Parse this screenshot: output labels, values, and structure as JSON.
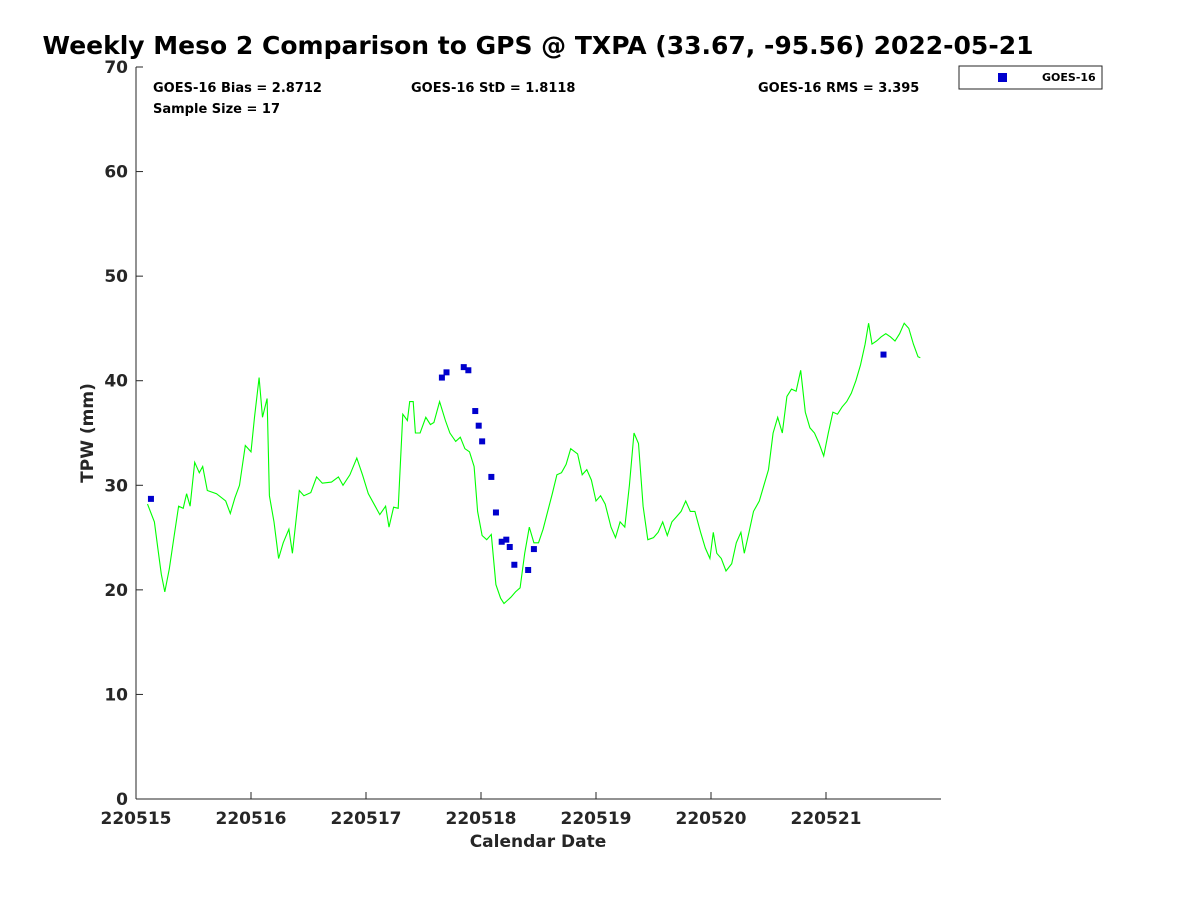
{
  "chart_data": {
    "type": "scatter",
    "title": "Weekly Meso 2 Comparison to GPS @ TXPA (33.67, -95.56) 2022-05-21",
    "xlabel": "Calendar Date",
    "ylabel": "TPW (mm)",
    "xlim": [
      0,
      7
    ],
    "ylim": [
      0,
      70
    ],
    "x_ticks": [
      0,
      1,
      2,
      3,
      4,
      5,
      6
    ],
    "x_tick_labels": [
      "220515",
      "220516",
      "220517",
      "220518",
      "220519",
      "220520",
      "220521"
    ],
    "y_ticks": [
      0,
      10,
      20,
      30,
      40,
      50,
      60,
      70
    ],
    "y_tick_labels": [
      "0",
      "10",
      "20",
      "30",
      "40",
      "50",
      "60",
      "70"
    ],
    "grid": false,
    "legend_position": "outside top-right",
    "stats": {
      "bias": "GOES-16 Bias = 2.8712",
      "std": "GOES-16 StD = 1.8118",
      "rms": "GOES-16 RMS = 3.395",
      "sample_size": "Sample Size = 17"
    },
    "series": [
      {
        "name": "GOES-16",
        "kind": "scatter",
        "marker": "square",
        "color": "#0000cd",
        "points": [
          [
            0.13,
            28.7
          ],
          [
            2.66,
            40.3
          ],
          [
            2.7,
            40.8
          ],
          [
            2.85,
            41.3
          ],
          [
            2.89,
            41.0
          ],
          [
            2.95,
            37.1
          ],
          [
            2.98,
            35.7
          ],
          [
            3.01,
            34.2
          ],
          [
            3.09,
            30.8
          ],
          [
            3.13,
            27.4
          ],
          [
            3.18,
            24.6
          ],
          [
            3.22,
            24.8
          ],
          [
            3.25,
            24.1
          ],
          [
            3.29,
            22.4
          ],
          [
            3.41,
            21.9
          ],
          [
            3.46,
            23.9
          ],
          [
            6.5,
            42.5
          ]
        ]
      },
      {
        "kind": "line",
        "color": "#00ff00",
        "points": [
          [
            0.1,
            28.2
          ],
          [
            0.16,
            26.5
          ],
          [
            0.19,
            24.0
          ],
          [
            0.22,
            21.5
          ],
          [
            0.25,
            19.8
          ],
          [
            0.29,
            22.0
          ],
          [
            0.33,
            25.0
          ],
          [
            0.37,
            28.0
          ],
          [
            0.41,
            27.8
          ],
          [
            0.44,
            29.2
          ],
          [
            0.47,
            28.0
          ],
          [
            0.51,
            32.2
          ],
          [
            0.55,
            31.2
          ],
          [
            0.58,
            31.8
          ],
          [
            0.62,
            29.5
          ],
          [
            0.7,
            29.2
          ],
          [
            0.78,
            28.5
          ],
          [
            0.82,
            27.3
          ],
          [
            0.86,
            28.8
          ],
          [
            0.9,
            30.0
          ],
          [
            0.95,
            33.8
          ],
          [
            1.0,
            33.2
          ],
          [
            1.03,
            36.5
          ],
          [
            1.07,
            40.3
          ],
          [
            1.1,
            36.5
          ],
          [
            1.14,
            38.3
          ],
          [
            1.16,
            29.0
          ],
          [
            1.2,
            26.5
          ],
          [
            1.24,
            23.0
          ],
          [
            1.28,
            24.5
          ],
          [
            1.33,
            25.8
          ],
          [
            1.36,
            23.5
          ],
          [
            1.42,
            29.5
          ],
          [
            1.46,
            29.0
          ],
          [
            1.52,
            29.3
          ],
          [
            1.57,
            30.8
          ],
          [
            1.62,
            30.2
          ],
          [
            1.7,
            30.3
          ],
          [
            1.76,
            30.8
          ],
          [
            1.8,
            30.0
          ],
          [
            1.86,
            31.0
          ],
          [
            1.92,
            32.6
          ],
          [
            1.97,
            31.0
          ],
          [
            2.02,
            29.2
          ],
          [
            2.08,
            28.0
          ],
          [
            2.12,
            27.2
          ],
          [
            2.17,
            28.0
          ],
          [
            2.2,
            26.0
          ],
          [
            2.24,
            27.9
          ],
          [
            2.28,
            27.8
          ],
          [
            2.32,
            36.8
          ],
          [
            2.36,
            36.2
          ],
          [
            2.38,
            38.0
          ],
          [
            2.41,
            38.0
          ],
          [
            2.43,
            35.0
          ],
          [
            2.47,
            35.0
          ],
          [
            2.52,
            36.5
          ],
          [
            2.56,
            35.8
          ],
          [
            2.59,
            36.0
          ],
          [
            2.64,
            38.0
          ],
          [
            2.69,
            36.2
          ],
          [
            2.73,
            35.0
          ],
          [
            2.78,
            34.2
          ],
          [
            2.82,
            34.6
          ],
          [
            2.86,
            33.5
          ],
          [
            2.9,
            33.2
          ],
          [
            2.94,
            31.8
          ],
          [
            2.97,
            27.5
          ],
          [
            3.01,
            25.2
          ],
          [
            3.05,
            24.8
          ],
          [
            3.09,
            25.3
          ],
          [
            3.13,
            20.5
          ],
          [
            3.17,
            19.2
          ],
          [
            3.2,
            18.7
          ],
          [
            3.26,
            19.3
          ],
          [
            3.3,
            19.8
          ],
          [
            3.34,
            20.2
          ],
          [
            3.38,
            23.5
          ],
          [
            3.42,
            26.0
          ],
          [
            3.46,
            24.5
          ],
          [
            3.5,
            24.5
          ],
          [
            3.54,
            25.8
          ],
          [
            3.58,
            27.5
          ],
          [
            3.62,
            29.2
          ],
          [
            3.66,
            31.0
          ],
          [
            3.7,
            31.2
          ],
          [
            3.74,
            32.0
          ],
          [
            3.78,
            33.5
          ],
          [
            3.84,
            33.0
          ],
          [
            3.88,
            31.0
          ],
          [
            3.92,
            31.5
          ],
          [
            3.96,
            30.5
          ],
          [
            4.0,
            28.5
          ],
          [
            4.04,
            29.0
          ],
          [
            4.08,
            28.2
          ],
          [
            4.13,
            26.0
          ],
          [
            4.17,
            25.0
          ],
          [
            4.21,
            26.5
          ],
          [
            4.25,
            26.0
          ],
          [
            4.29,
            30.0
          ],
          [
            4.33,
            35.0
          ],
          [
            4.37,
            34.0
          ],
          [
            4.41,
            28.0
          ],
          [
            4.45,
            24.8
          ],
          [
            4.5,
            25.0
          ],
          [
            4.54,
            25.5
          ],
          [
            4.58,
            26.5
          ],
          [
            4.62,
            25.2
          ],
          [
            4.66,
            26.5
          ],
          [
            4.7,
            27.0
          ],
          [
            4.74,
            27.5
          ],
          [
            4.78,
            28.5
          ],
          [
            4.82,
            27.5
          ],
          [
            4.86,
            27.5
          ],
          [
            4.91,
            25.5
          ],
          [
            4.95,
            24.0
          ],
          [
            4.99,
            23.0
          ],
          [
            5.02,
            25.5
          ],
          [
            5.05,
            23.5
          ],
          [
            5.09,
            23.0
          ],
          [
            5.13,
            21.8
          ],
          [
            5.18,
            22.5
          ],
          [
            5.22,
            24.5
          ],
          [
            5.26,
            25.5
          ],
          [
            5.29,
            23.5
          ],
          [
            5.33,
            25.5
          ],
          [
            5.37,
            27.5
          ],
          [
            5.42,
            28.5
          ],
          [
            5.46,
            30.0
          ],
          [
            5.5,
            31.5
          ],
          [
            5.54,
            35.0
          ],
          [
            5.58,
            36.5
          ],
          [
            5.62,
            35.0
          ],
          [
            5.66,
            38.5
          ],
          [
            5.7,
            39.2
          ],
          [
            5.74,
            39.0
          ],
          [
            5.78,
            41.0
          ],
          [
            5.82,
            37.0
          ],
          [
            5.86,
            35.5
          ],
          [
            5.9,
            35.0
          ],
          [
            5.94,
            34.0
          ],
          [
            5.98,
            32.8
          ],
          [
            6.02,
            35.0
          ],
          [
            6.06,
            37.0
          ],
          [
            6.1,
            36.8
          ],
          [
            6.14,
            37.5
          ],
          [
            6.18,
            38.0
          ],
          [
            6.22,
            38.8
          ],
          [
            6.26,
            40.0
          ],
          [
            6.3,
            41.5
          ],
          [
            6.34,
            43.5
          ],
          [
            6.37,
            45.5
          ],
          [
            6.4,
            43.5
          ],
          [
            6.44,
            43.8
          ],
          [
            6.48,
            44.2
          ],
          [
            6.52,
            44.5
          ],
          [
            6.56,
            44.2
          ],
          [
            6.6,
            43.8
          ],
          [
            6.64,
            44.5
          ],
          [
            6.68,
            45.5
          ],
          [
            6.72,
            45.0
          ],
          [
            6.76,
            43.5
          ],
          [
            6.8,
            42.3
          ],
          [
            6.82,
            42.2
          ]
        ]
      }
    ]
  }
}
